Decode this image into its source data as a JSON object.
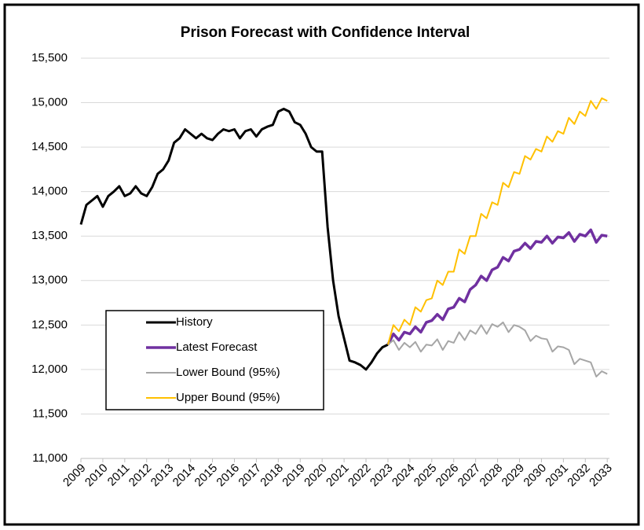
{
  "chart_data": {
    "type": "line",
    "title": "Prison Forecast with Confidence Interval",
    "x": [
      2009,
      2009.25,
      2009.5,
      2009.75,
      2010,
      2010.25,
      2010.5,
      2010.75,
      2011,
      2011.25,
      2011.5,
      2011.75,
      2012,
      2012.25,
      2012.5,
      2012.75,
      2013,
      2013.25,
      2013.5,
      2013.75,
      2014,
      2014.25,
      2014.5,
      2014.75,
      2015,
      2015.25,
      2015.5,
      2015.75,
      2016,
      2016.25,
      2016.5,
      2016.75,
      2017,
      2017.25,
      2017.5,
      2017.75,
      2018,
      2018.25,
      2018.5,
      2018.75,
      2019,
      2019.25,
      2019.5,
      2019.75,
      2020,
      2020.25,
      2020.5,
      2020.75,
      2021,
      2021.25,
      2021.5,
      2021.75,
      2022,
      2022.25,
      2022.5,
      2022.75,
      2023,
      2023.25,
      2023.5,
      2023.75,
      2024,
      2024.25,
      2024.5,
      2024.75,
      2025,
      2025.25,
      2025.5,
      2025.75,
      2026,
      2026.25,
      2026.5,
      2026.75,
      2027,
      2027.25,
      2027.5,
      2027.75,
      2028,
      2028.25,
      2028.5,
      2028.75,
      2029,
      2029.25,
      2029.5,
      2029.75,
      2030,
      2030.25,
      2030.5,
      2030.75,
      2031,
      2031.25,
      2031.5,
      2031.75,
      2032,
      2032.25,
      2032.5,
      2032.75,
      2033
    ],
    "series": [
      {
        "name": "History",
        "color": "#000000",
        "values": [
          13630,
          13850,
          13900,
          13950,
          13830,
          13950,
          14000,
          14060,
          13950,
          13980,
          14060,
          13980,
          13950,
          14050,
          14200,
          14250,
          14350,
          14550,
          14600,
          14700,
          14650,
          14600,
          14650,
          14600,
          14580,
          14650,
          14700,
          14680,
          14700,
          14600,
          14680,
          14700,
          14620,
          14700,
          14730,
          14750,
          14900,
          14930,
          14900,
          14780,
          14750,
          14650,
          14500,
          14450,
          14450,
          13600,
          13000,
          12600,
          12350,
          12100,
          12080,
          12050,
          12000,
          12080,
          12180,
          12250,
          12280,
          null,
          null,
          null,
          null,
          null,
          null,
          null,
          null,
          null,
          null,
          null,
          null,
          null,
          null,
          null,
          null,
          null,
          null,
          null,
          null,
          null,
          null,
          null,
          null,
          null,
          null,
          null,
          null,
          null,
          null,
          null,
          null,
          null,
          null,
          null,
          null,
          null,
          null,
          null,
          null
        ]
      },
      {
        "name": "Latest Forecast",
        "color": "#7030a0",
        "values": [
          null,
          null,
          null,
          null,
          null,
          null,
          null,
          null,
          null,
          null,
          null,
          null,
          null,
          null,
          null,
          null,
          null,
          null,
          null,
          null,
          null,
          null,
          null,
          null,
          null,
          null,
          null,
          null,
          null,
          null,
          null,
          null,
          null,
          null,
          null,
          null,
          null,
          null,
          null,
          null,
          null,
          null,
          null,
          null,
          null,
          null,
          null,
          null,
          null,
          null,
          null,
          null,
          null,
          null,
          null,
          null,
          12280,
          12400,
          12330,
          12420,
          12400,
          12480,
          12420,
          12530,
          12550,
          12620,
          12560,
          12680,
          12700,
          12800,
          12760,
          12900,
          12950,
          13050,
          13000,
          13120,
          13150,
          13260,
          13220,
          13330,
          13350,
          13420,
          13360,
          13440,
          13430,
          13500,
          13420,
          13490,
          13480,
          13540,
          13440,
          13520,
          13500,
          13570,
          13430,
          13510,
          13500
        ]
      },
      {
        "name": "Lower Bound (95%)",
        "color": "#a6a6a6",
        "values": [
          null,
          null,
          null,
          null,
          null,
          null,
          null,
          null,
          null,
          null,
          null,
          null,
          null,
          null,
          null,
          null,
          null,
          null,
          null,
          null,
          null,
          null,
          null,
          null,
          null,
          null,
          null,
          null,
          null,
          null,
          null,
          null,
          null,
          null,
          null,
          null,
          null,
          null,
          null,
          null,
          null,
          null,
          null,
          null,
          null,
          null,
          null,
          null,
          null,
          null,
          null,
          null,
          null,
          null,
          null,
          null,
          12280,
          12330,
          12220,
          12300,
          12250,
          12310,
          12200,
          12280,
          12270,
          12340,
          12220,
          12320,
          12300,
          12420,
          12330,
          12440,
          12400,
          12500,
          12400,
          12510,
          12480,
          12530,
          12420,
          12500,
          12480,
          12440,
          12320,
          12380,
          12350,
          12340,
          12200,
          12260,
          12250,
          12220,
          12060,
          12120,
          12100,
          12080,
          11920,
          11980,
          11950
        ]
      },
      {
        "name": "Upper Bound (95%)",
        "color": "#ffc000",
        "values": [
          null,
          null,
          null,
          null,
          null,
          null,
          null,
          null,
          null,
          null,
          null,
          null,
          null,
          null,
          null,
          null,
          null,
          null,
          null,
          null,
          null,
          null,
          null,
          null,
          null,
          null,
          null,
          null,
          null,
          null,
          null,
          null,
          null,
          null,
          null,
          null,
          null,
          null,
          null,
          null,
          null,
          null,
          null,
          null,
          null,
          null,
          null,
          null,
          null,
          null,
          null,
          null,
          null,
          null,
          null,
          null,
          12280,
          12500,
          12430,
          12560,
          12500,
          12700,
          12650,
          12780,
          12800,
          13000,
          12950,
          13100,
          13100,
          13350,
          13300,
          13500,
          13500,
          13750,
          13700,
          13880,
          13850,
          14100,
          14050,
          14220,
          14200,
          14400,
          14360,
          14480,
          14450,
          14620,
          14560,
          14680,
          14650,
          14830,
          14760,
          14900,
          14850,
          15020,
          14930,
          15050,
          15020
        ]
      }
    ],
    "xlim": [
      2009,
      2033.1
    ],
    "xticks": [
      2009,
      2010,
      2011,
      2012,
      2013,
      2014,
      2015,
      2016,
      2017,
      2018,
      2019,
      2020,
      2021,
      2022,
      2023,
      2024,
      2025,
      2026,
      2027,
      2028,
      2029,
      2030,
      2031,
      2032,
      2033
    ],
    "ylim": [
      11000,
      15500
    ],
    "yticks": [
      {
        "value": 11000,
        "label": "11,000"
      },
      {
        "value": 11500,
        "label": "11,500"
      },
      {
        "value": 12000,
        "label": "12,000"
      },
      {
        "value": 12500,
        "label": "12,500"
      },
      {
        "value": 13000,
        "label": "13,000"
      },
      {
        "value": 13500,
        "label": "13,500"
      },
      {
        "value": 14000,
        "label": "14,000"
      },
      {
        "value": 14500,
        "label": "14,500"
      },
      {
        "value": 15000,
        "label": "15,000"
      },
      {
        "value": 15500,
        "label": "15,500"
      }
    ],
    "grid": true,
    "legend": "lower left"
  }
}
